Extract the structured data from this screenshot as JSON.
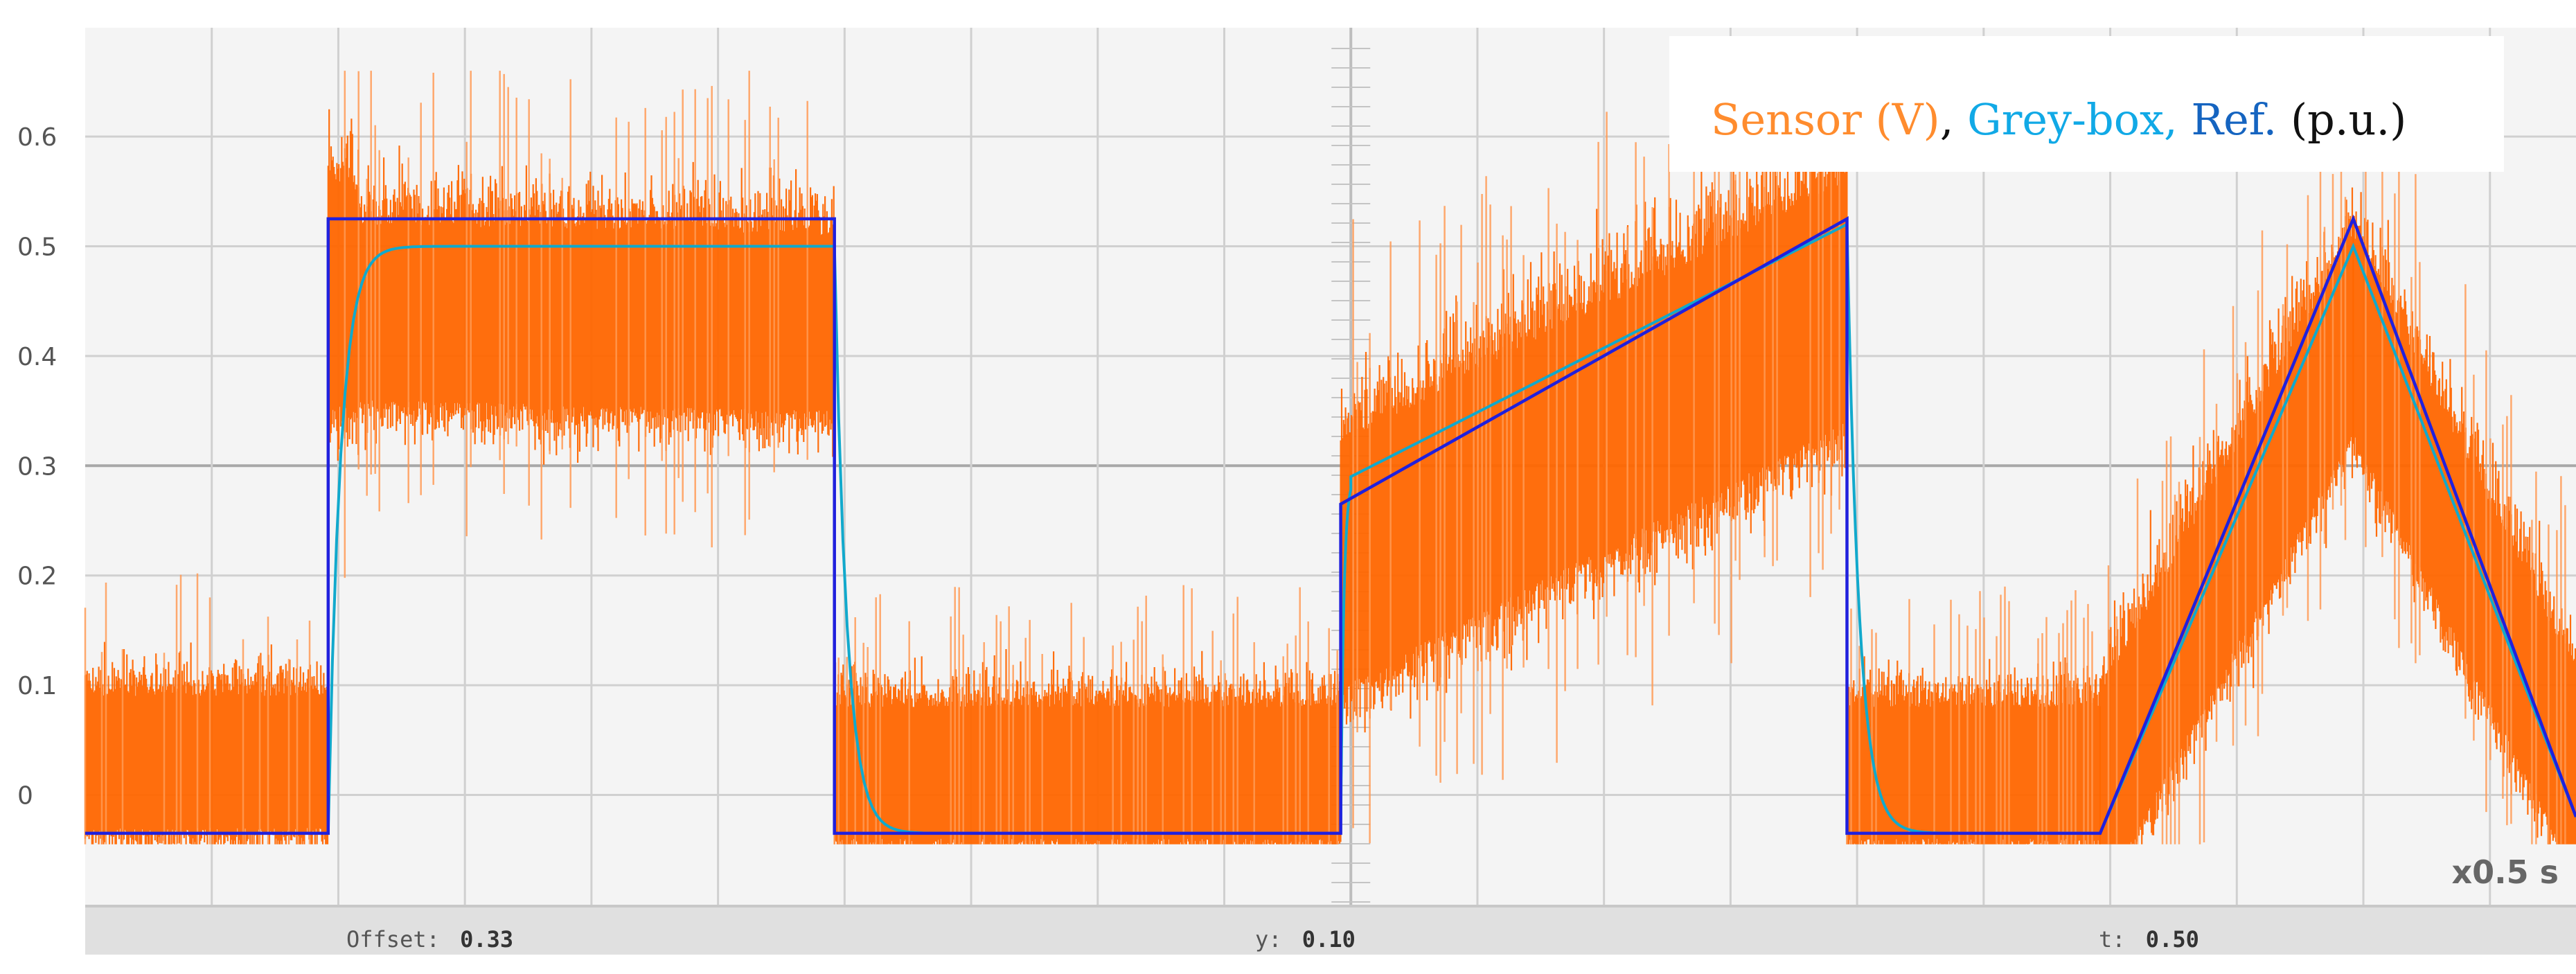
{
  "chart_data": {
    "type": "line",
    "title": "",
    "xlabel": "",
    "ylabel": "",
    "ylim": [
      -0.11,
      0.68
    ],
    "xlim": [
      0,
      2.46
    ],
    "grid": true,
    "y_ticks": [
      "0.6",
      "0.5",
      "0.4",
      "0.3",
      "0.2",
      "0.1",
      "0"
    ],
    "legend": {
      "position": "top-right",
      "parts": [
        "Sensor (V)",
        ", ",
        "Grey-box, ",
        "Ref.",
        " (p.u.)"
      ]
    },
    "colors": {
      "sensor": "#ff6600",
      "greybox": "#11a9cc",
      "ref": "#2020dd",
      "ref_line2": "#1b2fa0",
      "background": "#f4f4f4",
      "grid": "#d0d0d0",
      "status_bar": "#e0e0e0"
    },
    "time_scale_label": "x0.5 s",
    "status_bar": {
      "offset_label": "Offset:",
      "offset_value": "0.33",
      "y_label": "y:",
      "y_value": "0.10",
      "t_label": "t:",
      "t_value": "0.50"
    },
    "series": [
      {
        "name": "Ref.",
        "x": [
          0,
          0.24,
          0.24,
          0.74,
          0.74,
          1.24,
          1.24,
          1.74,
          1.74,
          1.99,
          2.24,
          2.46
        ],
        "y": [
          -0.035,
          -0.035,
          0.525,
          0.525,
          -0.035,
          -0.035,
          0.265,
          0.525,
          -0.035,
          -0.035,
          0.525,
          -0.02
        ]
      },
      {
        "name": "Grey-box",
        "segments": [
          {
            "type": "constant",
            "x0": 0.0,
            "x1": 0.24,
            "y": -0.035
          },
          {
            "type": "exp",
            "x0": 0.24,
            "x1": 0.74,
            "from": -0.035,
            "to": 0.5,
            "tau": 0.012
          },
          {
            "type": "exp",
            "x0": 0.74,
            "x1": 1.24,
            "from": 0.5,
            "to": -0.035,
            "tau": 0.012
          },
          {
            "type": "exp",
            "x0": 1.24,
            "x1": 1.25,
            "from": -0.035,
            "to": 0.29,
            "tau": 0.003
          },
          {
            "type": "ramp",
            "x0": 1.25,
            "x1": 1.74,
            "from": 0.29,
            "to": 0.52
          },
          {
            "type": "exp",
            "x0": 1.74,
            "x1": 1.99,
            "from": 0.52,
            "to": -0.035,
            "tau": 0.012
          },
          {
            "type": "ramp",
            "x0": 1.99,
            "x1": 2.24,
            "from": -0.035,
            "to": 0.5
          },
          {
            "type": "ramp",
            "x0": 2.24,
            "x1": 2.46,
            "from": 0.5,
            "to": -0.02
          }
        ]
      },
      {
        "name": "Sensor (V)",
        "mean_segments": [
          {
            "x0": 0.0,
            "x1": 0.24,
            "y0": 0.03,
            "y1": 0.03,
            "noise": 0.06
          },
          {
            "x0": 0.24,
            "x1": 0.27,
            "y0": 0.46,
            "y1": 0.45,
            "noise": 0.1
          },
          {
            "x0": 0.27,
            "x1": 0.74,
            "y0": 0.44,
            "y1": 0.43,
            "noise": 0.08
          },
          {
            "x0": 0.74,
            "x1": 1.24,
            "y0": 0.02,
            "y1": 0.02,
            "noise": 0.06
          },
          {
            "x0": 1.24,
            "x1": 1.74,
            "y0": 0.21,
            "y1": 0.45,
            "noise": 0.11
          },
          {
            "x0": 1.74,
            "x1": 1.99,
            "y0": 0.02,
            "y1": 0.02,
            "noise": 0.06
          },
          {
            "x0": 1.99,
            "x1": 2.24,
            "y0": 0.0,
            "y1": 0.42,
            "noise": 0.09
          },
          {
            "x0": 2.24,
            "x1": 2.46,
            "y0": 0.42,
            "y1": 0.02,
            "noise": 0.09
          }
        ]
      }
    ]
  }
}
